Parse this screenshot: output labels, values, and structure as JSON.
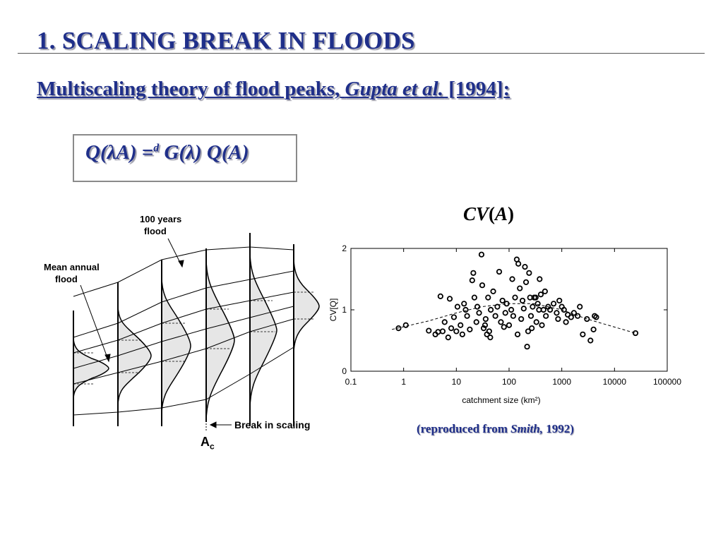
{
  "slide": {
    "title": "1.  SCALING BREAK IN FLOODS",
    "subtitle_main": "Multiscaling theory of flood peaks, ",
    "subtitle_italic": "Gupta et al.",
    "subtitle_end": " [1994]:",
    "equation_lhs": "Q(λA) =",
    "equation_sup": "d",
    "equation_rhs": " G(λ) Q(A)",
    "cv_label_italic1": "CV",
    "cv_label_paren_open": "(",
    "cv_label_italic2": "A",
    "cv_label_paren_close": ")",
    "credit_open": "(reproduced from ",
    "credit_italic": "Smith,",
    "credit_close": " 1992)"
  },
  "diagram": {
    "label_100yr_line1": "100 years",
    "label_100yr_line2": "flood",
    "label_mean_line1": "Mean annual",
    "label_mean_line2": "flood",
    "label_break": "Break in scaling",
    "label_ac_main": "A",
    "label_ac_sub": "c"
  },
  "chart_data": {
    "type": "scatter",
    "xlabel": "catchment size (km²)",
    "ylabel": "CV[Q]",
    "x_scale": "log",
    "xlim": [
      0.1,
      100000
    ],
    "ylim": [
      0,
      2
    ],
    "x_ticks": [
      "0.1",
      "1",
      "10",
      "100",
      "1000",
      "10000",
      "100000"
    ],
    "y_ticks": [
      "0",
      "1",
      "2"
    ],
    "grid": false,
    "marker": "open-circle",
    "points": [
      [
        0.8,
        0.7
      ],
      [
        1.1,
        0.75
      ],
      [
        3,
        0.66
      ],
      [
        4,
        0.6
      ],
      [
        4.5,
        0.64
      ],
      [
        5,
        1.22
      ],
      [
        5.5,
        0.65
      ],
      [
        6,
        0.8
      ],
      [
        7,
        0.55
      ],
      [
        7.5,
        1.18
      ],
      [
        8,
        0.7
      ],
      [
        9,
        0.88
      ],
      [
        10,
        0.65
      ],
      [
        10.5,
        1.05
      ],
      [
        12,
        0.75
      ],
      [
        13,
        0.6
      ],
      [
        14,
        1.1
      ],
      [
        15,
        1.0
      ],
      [
        16,
        0.9
      ],
      [
        18,
        0.68
      ],
      [
        20,
        1.48
      ],
      [
        21,
        1.6
      ],
      [
        22,
        1.2
      ],
      [
        24,
        0.8
      ],
      [
        25,
        1.05
      ],
      [
        27,
        0.95
      ],
      [
        30,
        1.9
      ],
      [
        31,
        1.4
      ],
      [
        33,
        0.7
      ],
      [
        35,
        0.75
      ],
      [
        36,
        0.85
      ],
      [
        38,
        0.6
      ],
      [
        40,
        1.2
      ],
      [
        42,
        0.65
      ],
      [
        44,
        0.55
      ],
      [
        45,
        1.0
      ],
      [
        50,
        1.3
      ],
      [
        55,
        0.9
      ],
      [
        60,
        1.05
      ],
      [
        65,
        1.62
      ],
      [
        70,
        0.8
      ],
      [
        75,
        1.15
      ],
      [
        80,
        0.72
      ],
      [
        85,
        0.95
      ],
      [
        90,
        1.1
      ],
      [
        100,
        0.75
      ],
      [
        110,
        1.0
      ],
      [
        115,
        1.5
      ],
      [
        120,
        0.9
      ],
      [
        130,
        1.2
      ],
      [
        140,
        1.82
      ],
      [
        145,
        0.6
      ],
      [
        150,
        1.75
      ],
      [
        160,
        1.35
      ],
      [
        170,
        0.85
      ],
      [
        180,
        1.15
      ],
      [
        190,
        1.02
      ],
      [
        200,
        1.7
      ],
      [
        210,
        1.45
      ],
      [
        220,
        0.4
      ],
      [
        230,
        0.65
      ],
      [
        240,
        1.6
      ],
      [
        250,
        1.2
      ],
      [
        260,
        0.9
      ],
      [
        270,
        0.7
      ],
      [
        280,
        1.05
      ],
      [
        300,
        1.2
      ],
      [
        320,
        1.2
      ],
      [
        330,
        0.8
      ],
      [
        350,
        1.1
      ],
      [
        370,
        1.0
      ],
      [
        380,
        1.5
      ],
      [
        400,
        1.25
      ],
      [
        420,
        0.75
      ],
      [
        450,
        1.0
      ],
      [
        480,
        1.3
      ],
      [
        500,
        0.9
      ],
      [
        550,
        1.05
      ],
      [
        600,
        1.0
      ],
      [
        700,
        1.1
      ],
      [
        800,
        0.95
      ],
      [
        850,
        0.85
      ],
      [
        900,
        1.15
      ],
      [
        1000,
        1.05
      ],
      [
        1100,
        1.0
      ],
      [
        1200,
        0.8
      ],
      [
        1300,
        0.92
      ],
      [
        1500,
        0.88
      ],
      [
        1700,
        0.95
      ],
      [
        2000,
        0.9
      ],
      [
        2200,
        1.05
      ],
      [
        2500,
        0.6
      ],
      [
        3000,
        0.85
      ],
      [
        3500,
        0.5
      ],
      [
        4000,
        0.68
      ],
      [
        4200,
        0.9
      ],
      [
        4500,
        0.88
      ],
      [
        25000,
        0.62
      ]
    ],
    "trend": [
      [
        0.6,
        0.68
      ],
      [
        3,
        0.82
      ],
      [
        10,
        0.95
      ],
      [
        30,
        1.05
      ],
      [
        100,
        1.1
      ],
      [
        300,
        1.1
      ],
      [
        1000,
        1.0
      ],
      [
        3000,
        0.85
      ],
      [
        10000,
        0.72
      ],
      [
        25000,
        0.62
      ]
    ]
  }
}
